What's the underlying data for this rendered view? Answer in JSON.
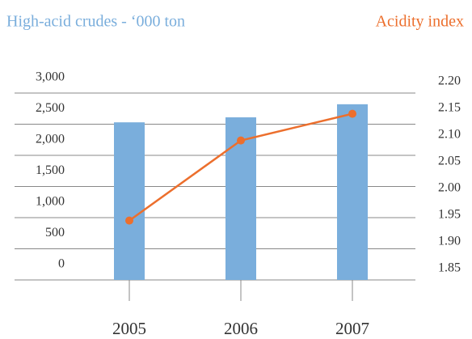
{
  "chart_data": {
    "type": "bar",
    "ylabel": "High-acid crudes - ‘000 ton",
    "y2label": "Acidity index",
    "categories": [
      "2005",
      "2006",
      "2007"
    ],
    "series": [
      {
        "type": "bar",
        "color": "#7aaedc",
        "values": [
          2530,
          2610,
          2820
        ]
      },
      {
        "type": "line",
        "axis": "y2",
        "color": "#ec6f2d",
        "values": [
          1.94,
          2.09,
          2.14
        ]
      }
    ],
    "ylim": [
      0,
      3000
    ],
    "yticks": [
      0,
      500,
      {
        "value": 1000,
        "label": "1,000"
      },
      {
        "value": 1500,
        "label": "1,500"
      },
      {
        "value": 2000,
        "label": "2,000"
      },
      {
        "value": 2500,
        "label": "2,500"
      },
      {
        "value": 3000,
        "label": "3,000"
      }
    ],
    "y2lim": [
      1.85,
      2.2
    ],
    "y2ticks": [
      1.85,
      {
        "value": 1.9,
        "label": "1.90"
      },
      1.95,
      {
        "value": 2.0,
        "label": "2.00"
      },
      2.05,
      {
        "value": 2.1,
        "label": "2.10"
      },
      2.15,
      {
        "value": 2.2,
        "label": "2.20"
      }
    ],
    "grid": true
  }
}
